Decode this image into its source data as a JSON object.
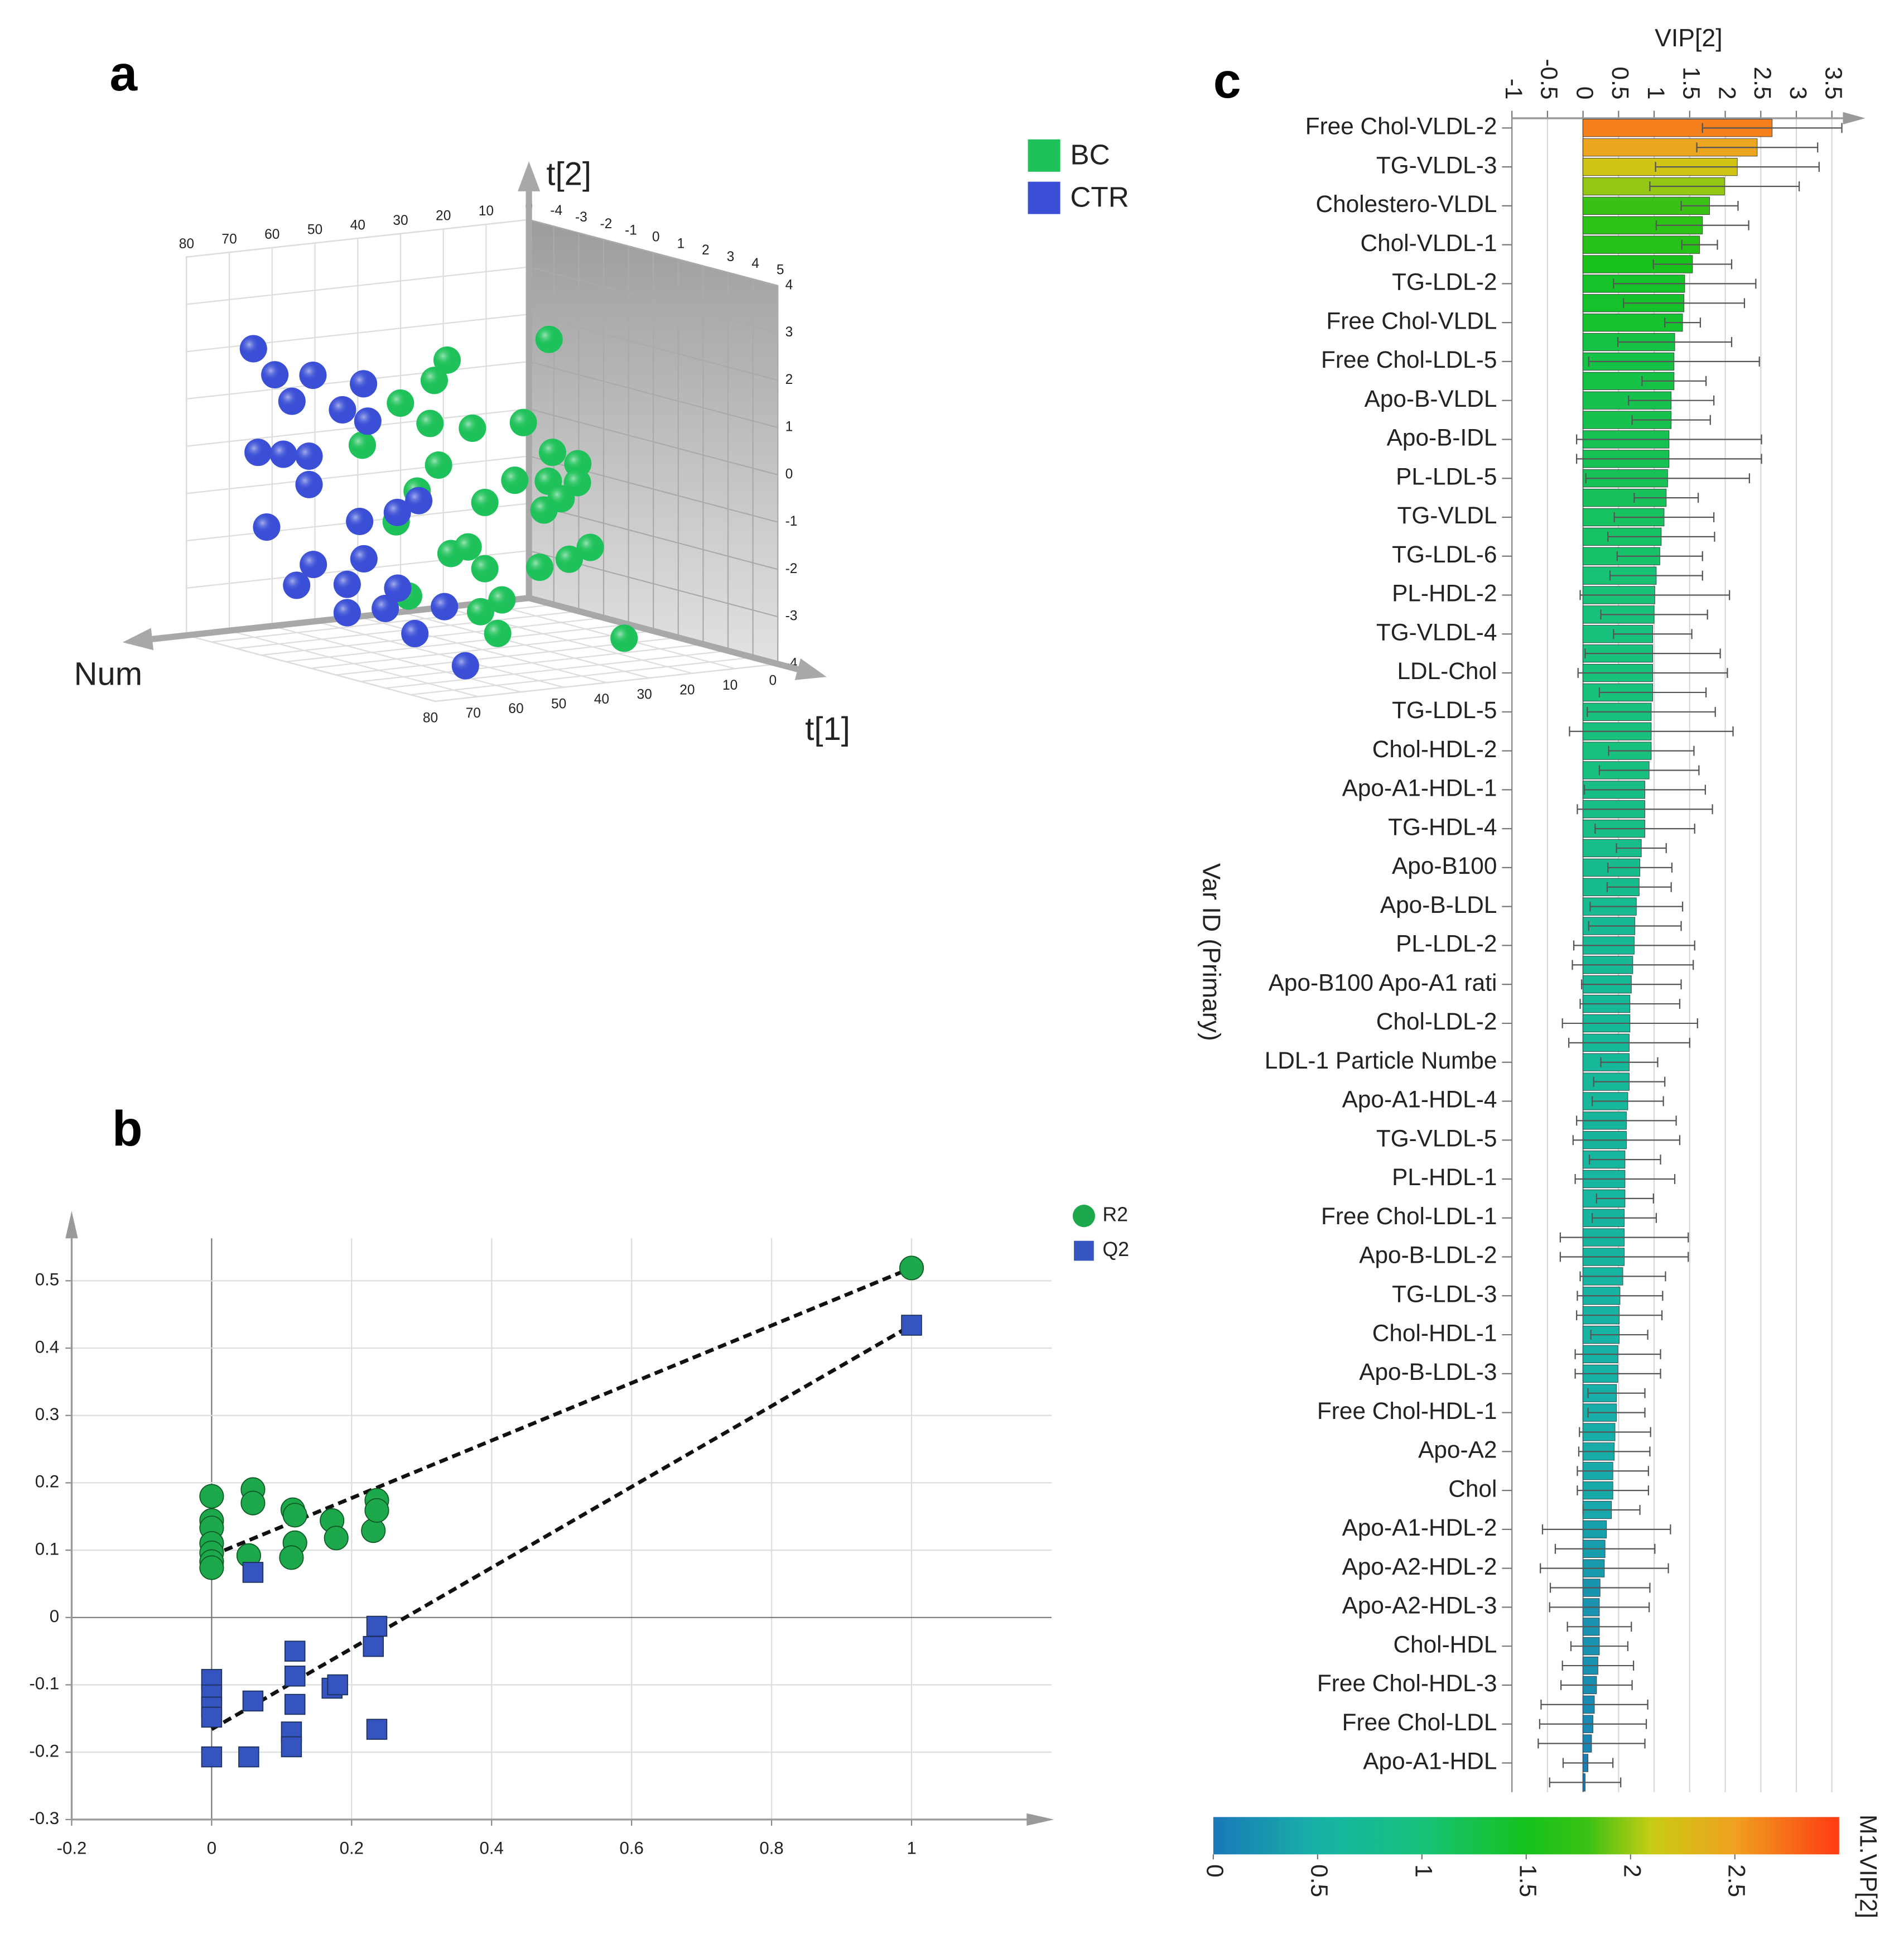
{
  "chart_data": [
    {
      "type": "scatter3d",
      "panel": "a",
      "xlabel": "t[1]",
      "ylabel": "t[2]",
      "zlabel": "Num",
      "xlim": [
        -5,
        5
      ],
      "ylim": [
        -4,
        4
      ],
      "zlim": [
        0,
        80
      ],
      "xticks": [
        -4,
        -3,
        -2,
        -1,
        0,
        1,
        2,
        3,
        4,
        5
      ],
      "yticks": [
        -4,
        -3,
        -2,
        -1,
        0,
        1,
        2,
        3,
        4
      ],
      "zticks": [
        0,
        10,
        20,
        30,
        40,
        50,
        60,
        70,
        80
      ],
      "series": [
        {
          "name": "BC",
          "color": "#1fc25a",
          "x": [
            2,
            1,
            1,
            0.5,
            1,
            1.5,
            2,
            0,
            1,
            3,
            3.5,
            2,
            3,
            4,
            2,
            1,
            3,
            3,
            0.5,
            1.5,
            1.5,
            2,
            4,
            3.5,
            3,
            2,
            2,
            1,
            4.5,
            2
          ],
          "values": [
            2.8,
            2.4,
            2.0,
            1.5,
            1.1,
            1.0,
            1.1,
            0.6,
            0.2,
            0.6,
            0.4,
            -0.1,
            0.0,
            0.1,
            -0.5,
            -0.3,
            -0.4,
            -0.6,
            -1.0,
            -1.6,
            -1.5,
            -1.9,
            -1.3,
            -1.6,
            -1.8,
            -2.6,
            -2.8,
            -2.5,
            -3.2,
            -3.3
          ],
          "z": [
            36,
            54,
            57,
            62,
            58,
            51,
            42,
            68,
            56,
            41,
            38,
            44,
            42,
            41,
            51,
            61,
            39,
            43,
            63,
            56,
            52,
            51,
            38,
            40,
            44,
            47,
            52,
            63,
            33,
            48
          ]
        },
        {
          "name": "CTR",
          "color": "#3a4fd6",
          "x": [
            -3,
            -3,
            -2.5,
            -1.5,
            -3,
            -2,
            -1.5,
            -3.5,
            -3,
            -3,
            -3,
            -3.5,
            -2,
            -1,
            -1,
            -3,
            -2,
            -3.5,
            -2.5,
            -1.5,
            -2.5,
            -2,
            -1.5,
            -1,
            -0.5
          ],
          "values": [
            2.3,
            1.7,
            1.7,
            1.6,
            1.1,
            1.0,
            0.8,
            0.0,
            0.0,
            -0.1,
            -0.7,
            -1.6,
            -1.4,
            -1.1,
            -0.9,
            -2.4,
            -2.2,
            -2.9,
            -2.8,
            -2.8,
            -3.4,
            -3.3,
            -3.8,
            -3.2,
            -4.4
          ],
          "z": [
            76,
            71,
            65,
            59,
            67,
            61,
            58,
            72,
            69,
            63,
            63,
            70,
            57,
            54,
            49,
            62,
            56,
            63,
            57,
            51,
            57,
            51,
            47,
            43,
            41
          ]
        }
      ]
    },
    {
      "type": "scatter",
      "panel": "b",
      "xlim": [
        -0.2,
        1.2
      ],
      "ylim": [
        -0.3,
        0.6
      ],
      "xticks": [
        -0.2,
        0,
        0.2,
        0.4,
        0.6,
        0.8,
        1
      ],
      "yticks": [
        -0.3,
        -0.2,
        -0.1,
        0,
        0.1,
        0.2,
        0.3,
        0.4,
        0.5
      ],
      "grid": true,
      "series": [
        {
          "name": "R2",
          "color": "#1ea84c",
          "marker": "circle",
          "x": [
            0,
            0,
            0,
            0,
            0,
            0,
            0,
            0.059,
            0.059,
            0.053,
            0.116,
            0.119,
            0.119,
            0.114,
            0.172,
            0.178,
            0.231,
            0.236,
            0.236,
            1
          ],
          "values": [
            0.18,
            0.144,
            0.133,
            0.11,
            0.096,
            0.083,
            0.074,
            0.19,
            0.17,
            0.092,
            0.16,
            0.152,
            0.111,
            0.089,
            0.144,
            0.118,
            0.129,
            0.174,
            0.159,
            0.519
          ]
        },
        {
          "name": "Q2",
          "color": "#3554c0",
          "marker": "square",
          "x": [
            0,
            0,
            0,
            0,
            0,
            0.059,
            0.059,
            0.053,
            0.119,
            0.119,
            0.119,
            0.114,
            0.114,
            0.172,
            0.18,
            0.231,
            0.236,
            0.236,
            1
          ],
          "values": [
            -0.092,
            -0.115,
            -0.133,
            -0.148,
            -0.207,
            0.067,
            -0.124,
            -0.207,
            -0.05,
            -0.087,
            -0.129,
            -0.17,
            -0.192,
            -0.105,
            -0.1,
            -0.043,
            -0.013,
            -0.166,
            0.434
          ]
        }
      ],
      "fit_lines": [
        {
          "x": [
            0,
            1
          ],
          "values": [
            0.092,
            0.519
          ]
        },
        {
          "x": [
            0,
            1
          ],
          "values": [
            -0.166,
            0.434
          ]
        }
      ]
    },
    {
      "type": "barh",
      "panel": "c",
      "title": "VIP[2]",
      "ylabel": "Var ID (Primary)",
      "xlim": [
        -1,
        3.9
      ],
      "xticks": [
        -1,
        -0.5,
        0,
        0.5,
        1,
        1.5,
        2,
        2.5,
        3,
        3.5
      ],
      "grid": true,
      "categories": [
        "Free Chol-VLDL-2",
        null,
        "TG-VLDL-3",
        null,
        "Cholestero-VLDL",
        null,
        "Chol-VLDL-1",
        null,
        "TG-LDL-2",
        null,
        "Free Chol-VLDL",
        null,
        "Free Chol-LDL-5",
        null,
        "Apo-B-VLDL",
        null,
        "Apo-B-IDL",
        null,
        "PL-LDL-5",
        null,
        "TG-VLDL",
        null,
        "TG-LDL-6",
        null,
        "PL-HDL-2",
        null,
        "TG-VLDL-4",
        null,
        "LDL-Chol",
        null,
        "TG-LDL-5",
        null,
        "Chol-HDL-2",
        null,
        "Apo-A1-HDL-1",
        null,
        "TG-HDL-4",
        null,
        "Apo-B100",
        null,
        "Apo-B-LDL",
        null,
        "PL-LDL-2",
        null,
        "Apo-B100 Apo-A1 rati",
        null,
        "Chol-LDL-2",
        null,
        "LDL-1 Particle Numbe",
        null,
        "Apo-A1-HDL-4",
        null,
        "TG-VLDL-5",
        null,
        "PL-HDL-1",
        null,
        "Free Chol-LDL-1",
        null,
        "Apo-B-LDL-2",
        null,
        "TG-LDL-3",
        null,
        "Chol-HDL-1",
        null,
        "Apo-B-LDL-3",
        null,
        "Free Chol-HDL-1",
        null,
        "Apo-A2",
        null,
        "Chol",
        null,
        "Apo-A1-HDL-2",
        null,
        "Apo-A2-HDL-2",
        null,
        "Apo-A2-HDL-3",
        null,
        "Chol-HDL",
        null,
        "Free Chol-HDL-3",
        null,
        "Free Chol-LDL",
        null,
        "Apo-A1-HDL",
        null
      ],
      "values": [
        2.66,
        2.45,
        2.17,
        1.99,
        1.78,
        1.68,
        1.64,
        1.54,
        1.43,
        1.42,
        1.4,
        1.29,
        1.28,
        1.28,
        1.24,
        1.24,
        1.21,
        1.21,
        1.19,
        1.17,
        1.14,
        1.1,
        1.08,
        1.03,
        1.01,
        1.0,
        0.98,
        0.98,
        0.98,
        0.98,
        0.96,
        0.96,
        0.96,
        0.93,
        0.87,
        0.87,
        0.87,
        0.82,
        0.8,
        0.79,
        0.75,
        0.73,
        0.72,
        0.7,
        0.68,
        0.66,
        0.66,
        0.65,
        0.65,
        0.65,
        0.63,
        0.61,
        0.61,
        0.59,
        0.59,
        0.59,
        0.58,
        0.58,
        0.58,
        0.56,
        0.52,
        0.51,
        0.51,
        0.49,
        0.49,
        0.47,
        0.47,
        0.45,
        0.44,
        0.42,
        0.42,
        0.4,
        0.33,
        0.31,
        0.3,
        0.24,
        0.23,
        0.23,
        0.23,
        0.21,
        0.19,
        0.16,
        0.14,
        0.12,
        0.07,
        0.03
      ],
      "errors": [
        0.98,
        0.85,
        1.15,
        1.05,
        0.4,
        0.65,
        0.25,
        0.55,
        1.0,
        0.85,
        0.25,
        0.8,
        1.2,
        0.45,
        0.6,
        0.55,
        1.3,
        1.3,
        1.15,
        0.45,
        0.7,
        0.75,
        0.6,
        0.65,
        1.05,
        0.75,
        0.55,
        0.95,
        1.05,
        0.75,
        0.9,
        1.15,
        0.6,
        0.7,
        0.85,
        0.95,
        0.7,
        0.35,
        0.45,
        0.45,
        0.65,
        0.65,
        0.85,
        0.85,
        0.7,
        0.7,
        0.95,
        0.85,
        0.4,
        0.5,
        0.5,
        0.7,
        0.75,
        0.5,
        0.7,
        0.4,
        0.45,
        0.9,
        0.9,
        0.6,
        0.6,
        0.6,
        0.4,
        0.6,
        0.6,
        0.4,
        0.4,
        0.5,
        0.5,
        0.5,
        0.5,
        0.4,
        0.9,
        0.7,
        0.9,
        0.7,
        0.7,
        0.45,
        0.4,
        0.5,
        0.5,
        0.75,
        0.75,
        0.75,
        0.35,
        0.5
      ],
      "colorbar": {
        "title": "M1.VIP[2]",
        "clim": [
          0,
          3
        ],
        "ticks": [
          0,
          0.5,
          1,
          1.5,
          2,
          2.5
        ],
        "colorscale": [
          [
            0,
            "#1a78b8"
          ],
          [
            0.5,
            "#17b3a6"
          ],
          [
            1,
            "#18c27a"
          ],
          [
            1.5,
            "#14c21c"
          ],
          [
            1.8,
            "#3cc214"
          ],
          [
            2.1,
            "#c8cc14"
          ],
          [
            2.5,
            "#f0a020"
          ],
          [
            3,
            "#ff3b14"
          ]
        ]
      }
    }
  ]
}
